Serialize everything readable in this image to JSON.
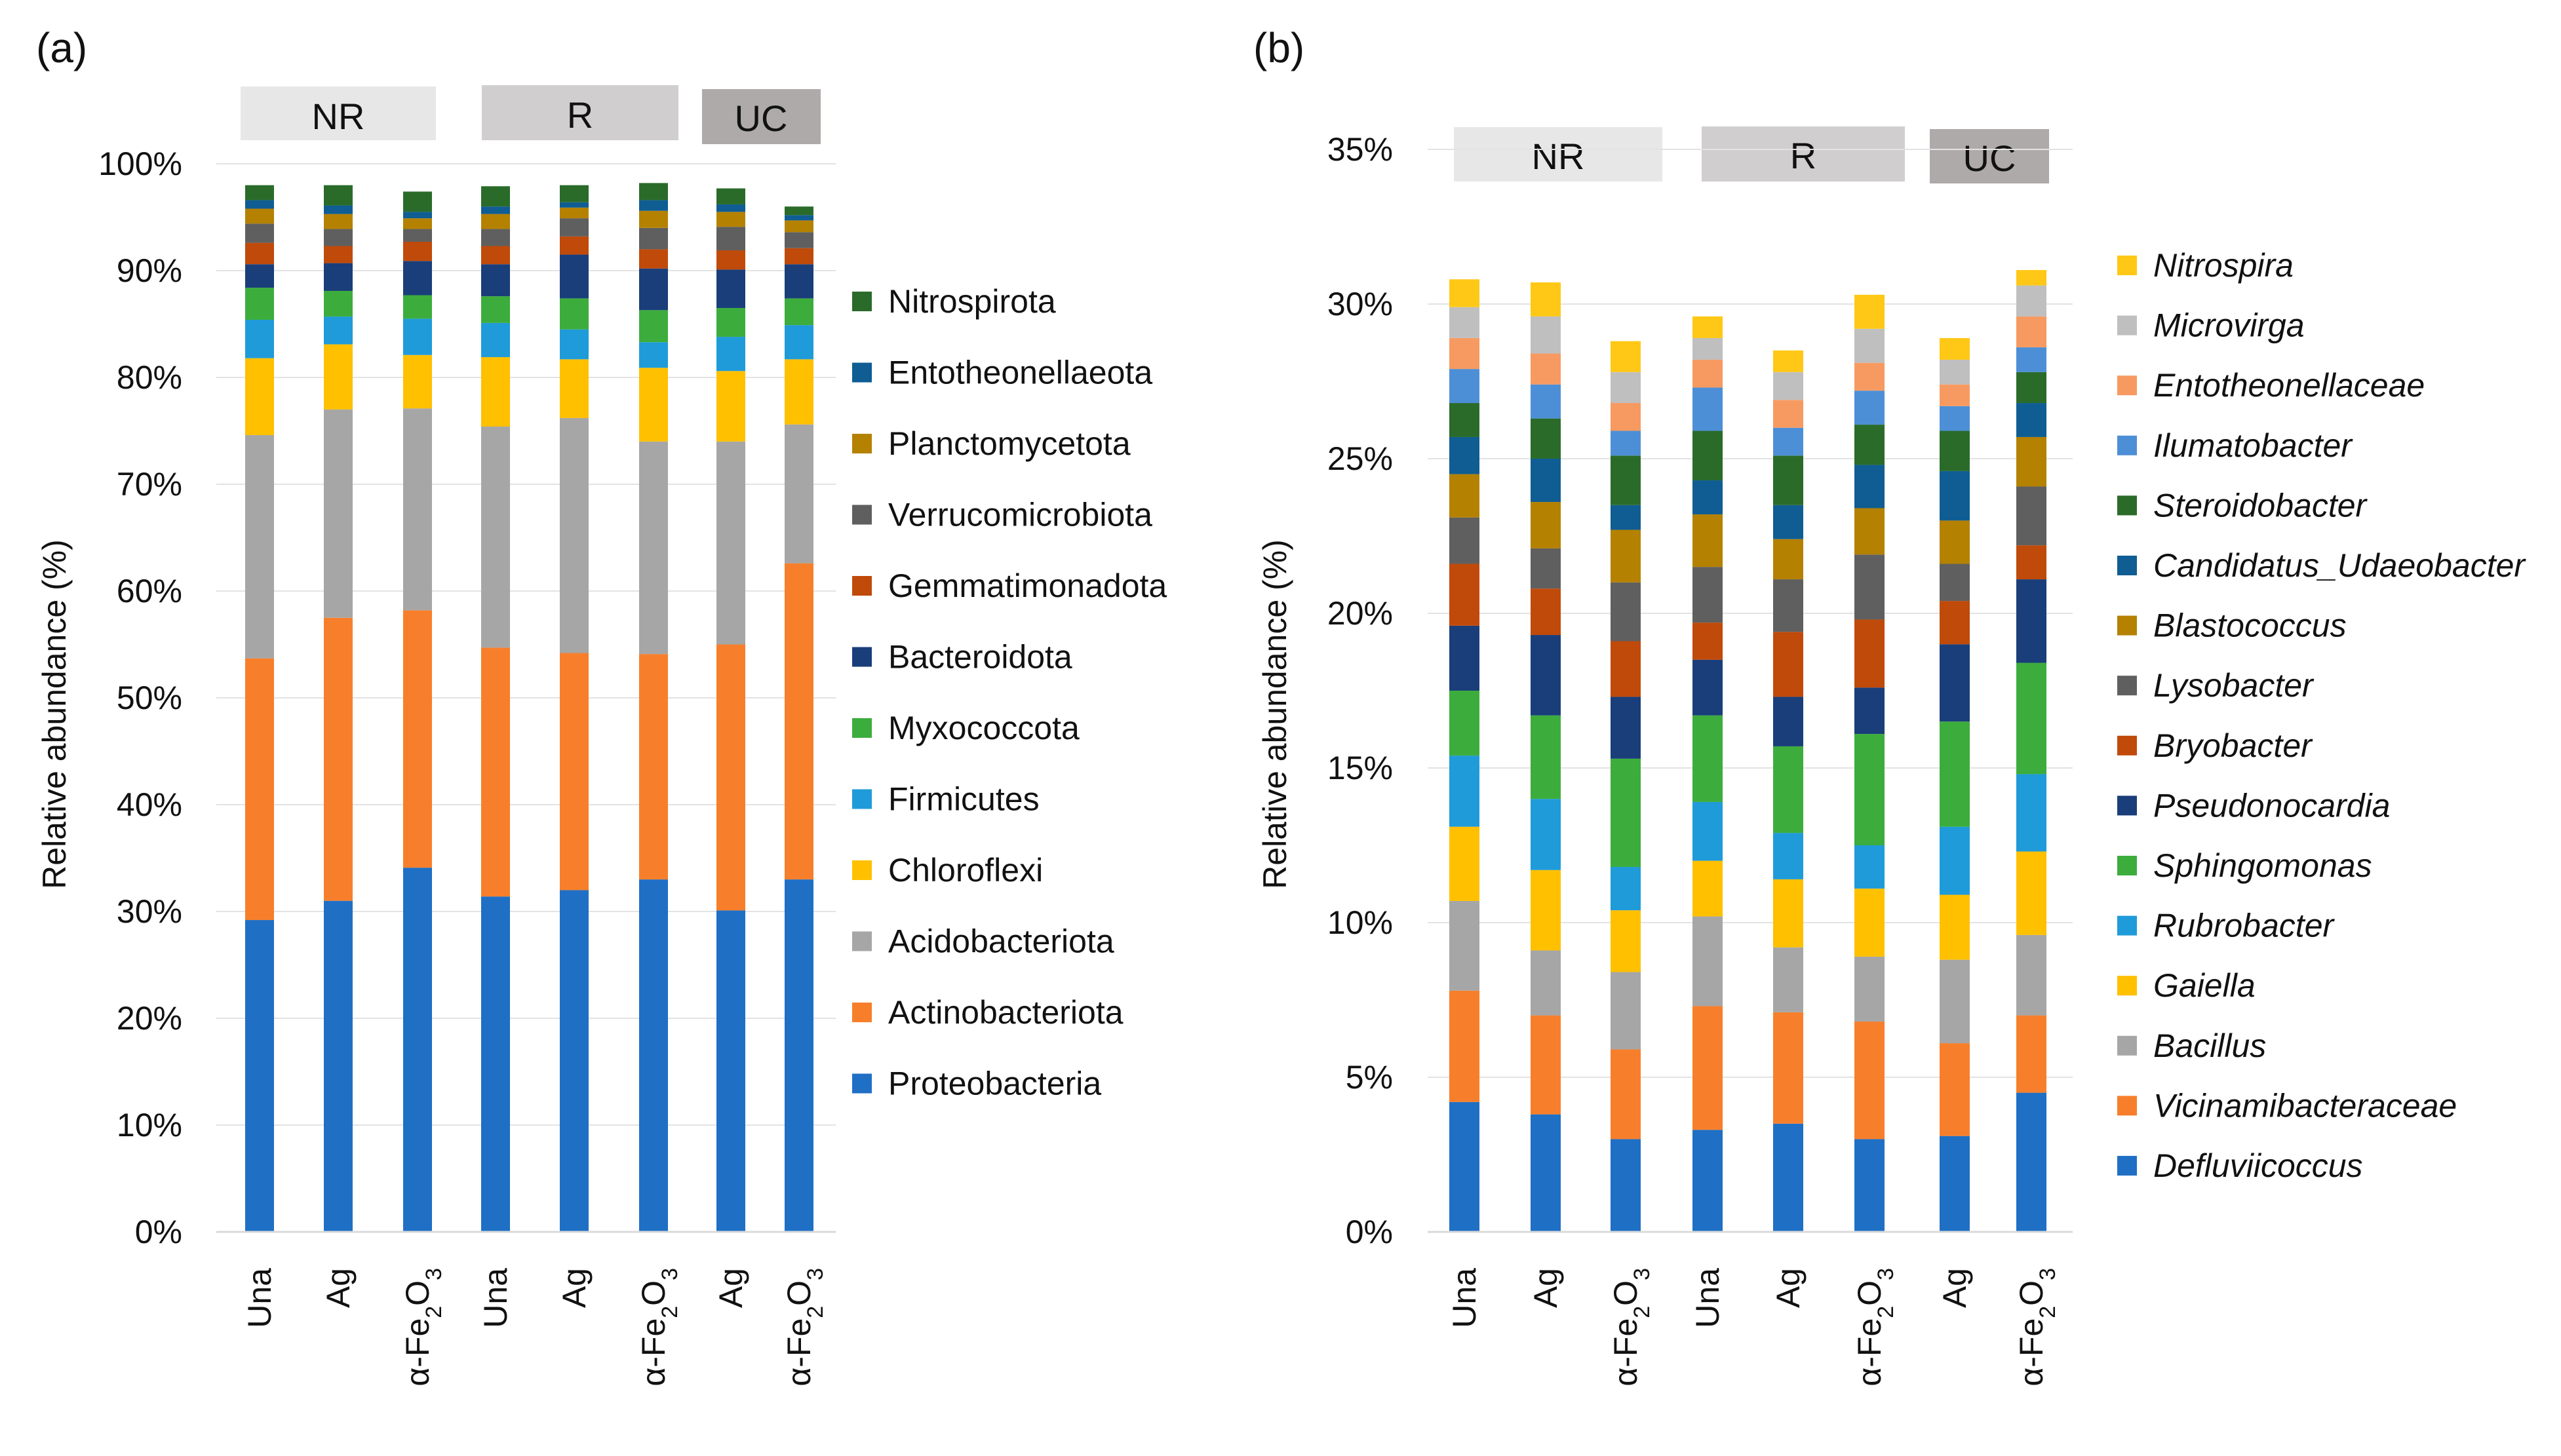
{
  "chart_data": [
    {
      "panel_label": "(a)",
      "type": "bar",
      "stacked": true,
      "ylabel": "Relative abundance (%)",
      "ylim": [
        0,
        100
      ],
      "yticks": [
        "0%",
        "10%",
        "20%",
        "30%",
        "40%",
        "50%",
        "60%",
        "70%",
        "80%",
        "90%",
        "100%"
      ],
      "groups": [
        "NR",
        "R",
        "UC"
      ],
      "categories": [
        "Una",
        "Ag",
        "α-Fe₂O₃",
        "Una",
        "Ag",
        "α-Fe₂O₃",
        "Ag",
        "α-Fe₂O₃"
      ],
      "legend_order": [
        "Nitrospirota",
        "Entotheonellaeota",
        "Planctomycetota",
        "Verrucomicrobiota",
        "Gemmatimonadota",
        "Bacteroidota",
        "Myxococcota",
        "Firmicutes",
        "Chloroflexi",
        "Acidobacteriota",
        "Actinobacteriota",
        "Proteobacteria"
      ],
      "series": [
        {
          "name": "Proteobacteria",
          "color": "#1f6fc5",
          "values": [
            29.2,
            31.0,
            34.1,
            31.4,
            32.0,
            33.0,
            30.1,
            33.0
          ]
        },
        {
          "name": "Actinobacteriota",
          "color": "#f77f2b",
          "values": [
            24.5,
            26.5,
            24.1,
            23.3,
            22.2,
            21.1,
            24.9,
            29.6
          ]
        },
        {
          "name": "Acidobacteriota",
          "color": "#a6a6a6",
          "values": [
            20.9,
            19.5,
            18.9,
            20.7,
            22.0,
            19.9,
            19.0,
            13.0
          ]
        },
        {
          "name": "Chloroflexi",
          "color": "#ffc000",
          "values": [
            7.2,
            6.1,
            5.0,
            6.5,
            5.5,
            6.9,
            6.6,
            6.1
          ]
        },
        {
          "name": "Firmicutes",
          "color": "#1f9bd9",
          "values": [
            3.6,
            2.6,
            3.4,
            3.2,
            2.8,
            2.4,
            3.2,
            3.2
          ]
        },
        {
          "name": "Myxococcota",
          "color": "#3cad3c",
          "values": [
            3.0,
            2.4,
            2.2,
            2.5,
            2.9,
            3.0,
            2.7,
            2.5
          ]
        },
        {
          "name": "Bacteroidota",
          "color": "#1a3e7a",
          "values": [
            2.2,
            2.6,
            3.2,
            3.0,
            4.1,
            3.9,
            3.6,
            3.2
          ]
        },
        {
          "name": "Gemmatimonadota",
          "color": "#c04a0a",
          "values": [
            2.0,
            1.6,
            1.8,
            1.7,
            1.7,
            1.8,
            1.8,
            1.5
          ]
        },
        {
          "name": "Verrucomicrobiota",
          "color": "#5f5f5f",
          "values": [
            1.8,
            1.6,
            1.2,
            1.6,
            1.7,
            2.0,
            2.2,
            1.5
          ]
        },
        {
          "name": "Planctomycetota",
          "color": "#b58100",
          "values": [
            1.4,
            1.4,
            1.0,
            1.4,
            1.0,
            1.6,
            1.4,
            1.1
          ]
        },
        {
          "name": "Entotheonellaeota",
          "color": "#0f5d93",
          "values": [
            0.8,
            0.8,
            0.6,
            0.7,
            0.5,
            1.0,
            0.7,
            0.5
          ]
        },
        {
          "name": "Nitrospirota",
          "color": "#2a6b2a",
          "values": [
            1.4,
            1.9,
            1.9,
            1.9,
            1.6,
            1.6,
            1.5,
            0.8
          ]
        }
      ]
    },
    {
      "panel_label": "(b)",
      "type": "bar",
      "stacked": true,
      "ylabel": "Relative abundance (%)",
      "ylim": [
        0,
        35
      ],
      "yticks": [
        "0%",
        "5%",
        "10%",
        "15%",
        "20%",
        "25%",
        "30%",
        "35%"
      ],
      "groups": [
        "NR",
        "R",
        "UC"
      ],
      "categories": [
        "Una",
        "Ag",
        "α-Fe₂O₃",
        "Una",
        "Ag",
        "α-Fe₂O₃",
        "Ag",
        "α-Fe₂O₃"
      ],
      "legend_order": [
        "Nitrospira",
        "Microvirga",
        "Entotheonellaceae",
        "Ilumatobacter",
        "Steroidobacter",
        "Candidatus_Udaeobacter",
        "Blastococcus",
        "Lysobacter",
        "Bryobacter",
        "Pseudonocardia",
        "Sphingomonas",
        "Rubrobacter",
        "Gaiella",
        "Bacillus",
        "Vicinamibacteraceae",
        "Defluviicoccus"
      ],
      "series": [
        {
          "name": "Defluviicoccus",
          "color": "#1f6fc5",
          "values": [
            4.2,
            3.8,
            3.0,
            3.3,
            3.5,
            3.0,
            3.1,
            4.5
          ]
        },
        {
          "name": "Vicinamibacteraceae",
          "color": "#f77f2b",
          "values": [
            3.6,
            3.2,
            2.9,
            4.0,
            3.6,
            3.8,
            3.0,
            2.5
          ]
        },
        {
          "name": "Bacillus",
          "color": "#a6a6a6",
          "values": [
            2.9,
            2.1,
            2.5,
            2.9,
            2.1,
            2.1,
            2.7,
            2.6
          ]
        },
        {
          "name": "Gaiella",
          "color": "#ffc000",
          "values": [
            2.4,
            2.6,
            2.0,
            1.8,
            2.2,
            2.2,
            2.1,
            2.7
          ]
        },
        {
          "name": "Rubrobacter",
          "color": "#1f9bd9",
          "values": [
            2.3,
            2.3,
            1.4,
            1.9,
            1.5,
            1.4,
            2.2,
            2.5
          ]
        },
        {
          "name": "Sphingomonas",
          "color": "#3cad3c",
          "values": [
            2.1,
            2.7,
            3.5,
            2.8,
            2.8,
            3.6,
            3.4,
            3.6
          ]
        },
        {
          "name": "Pseudonocardia",
          "color": "#1a3e7a",
          "values": [
            2.1,
            2.6,
            2.0,
            1.8,
            1.6,
            1.5,
            2.5,
            2.7
          ]
        },
        {
          "name": "Bryobacter",
          "color": "#c04a0a",
          "values": [
            2.0,
            1.5,
            1.8,
            1.2,
            2.1,
            2.2,
            1.4,
            1.1
          ]
        },
        {
          "name": "Lysobacter",
          "color": "#5f5f5f",
          "values": [
            1.5,
            1.3,
            1.9,
            1.8,
            1.7,
            2.1,
            1.2,
            1.9
          ]
        },
        {
          "name": "Blastococcus",
          "color": "#b58100",
          "values": [
            1.4,
            1.5,
            1.7,
            1.7,
            1.3,
            1.5,
            1.4,
            1.6
          ]
        },
        {
          "name": "Candidatus_Udaeobacter",
          "color": "#0f5d93",
          "values": [
            1.2,
            1.4,
            0.8,
            1.1,
            1.1,
            1.4,
            1.6,
            1.1
          ]
        },
        {
          "name": "Steroidobacter",
          "color": "#2a6b2a",
          "values": [
            1.1,
            1.3,
            1.6,
            1.6,
            1.6,
            1.3,
            1.3,
            1.0
          ]
        },
        {
          "name": "Ilumatobacter",
          "color": "#4d8fd6",
          "values": [
            1.1,
            1.1,
            0.8,
            1.4,
            0.9,
            1.1,
            0.8,
            0.8
          ]
        },
        {
          "name": "Entotheonellaceae",
          "color": "#f79a61",
          "values": [
            1.0,
            1.0,
            0.9,
            0.9,
            0.9,
            0.9,
            0.7,
            1.0
          ]
        },
        {
          "name": "Microvirga",
          "color": "#bfbfbf",
          "values": [
            1.0,
            1.2,
            1.0,
            0.7,
            0.9,
            1.1,
            0.8,
            1.0
          ]
        },
        {
          "name": "Nitrospira",
          "color": "#ffc816",
          "values": [
            0.9,
            1.1,
            1.0,
            0.7,
            0.7,
            1.1,
            0.7,
            0.5
          ]
        }
      ]
    }
  ]
}
